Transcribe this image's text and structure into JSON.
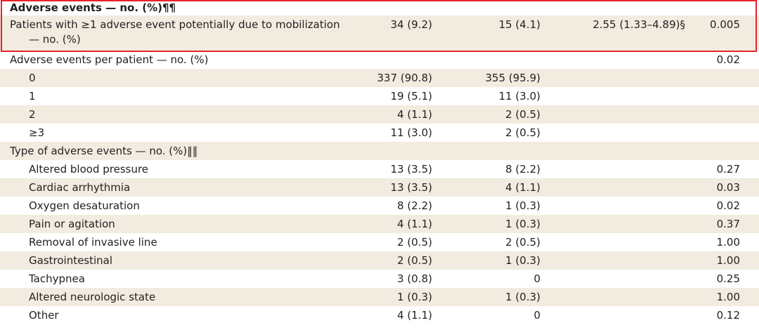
{
  "highlight": {
    "header": "Adverse events — no. (%)¶¶",
    "row_label_line1": "Patients with ≥1 adverse event potentially due to mobilization",
    "row_label_line2": "— no. (%)",
    "col1": "34 (9.2)",
    "col2": "15 (4.1)",
    "col3": "2.55 (1.33–4.89)§",
    "col4": "0.005"
  },
  "per_patient": {
    "label": "Adverse events per patient — no. (%)",
    "p_value": "0.02",
    "rows": [
      {
        "label": "0",
        "col1": "337 (90.8)",
        "col2": "355 (95.9)"
      },
      {
        "label": "1",
        "col1": "19 (5.1)",
        "col2": "11 (3.0)"
      },
      {
        "label": "2",
        "col1": "4 (1.1)",
        "col2": "2 (0.5)"
      },
      {
        "label": "≥3",
        "col1": "11 (3.0)",
        "col2": "2 (0.5)"
      }
    ]
  },
  "types": {
    "label": "Type of adverse events — no. (%)‖‖",
    "rows": [
      {
        "label": "Altered blood pressure",
        "col1": "13 (3.5)",
        "col2": "8 (2.2)",
        "col4": "0.27"
      },
      {
        "label": "Cardiac arrhythmia",
        "col1": "13 (3.5)",
        "col2": "4 (1.1)",
        "col4": "0.03"
      },
      {
        "label": "Oxygen desaturation",
        "col1": "8 (2.2)",
        "col2": "1 (0.3)",
        "col4": "0.02"
      },
      {
        "label": "Pain or agitation",
        "col1": "4 (1.1)",
        "col2": "1 (0.3)",
        "col4": "0.37"
      },
      {
        "label": "Removal of invasive line",
        "col1": "2 (0.5)",
        "col2": "2 (0.5)",
        "col4": "1.00"
      },
      {
        "label": "Gastrointestinal",
        "col1": "2 (0.5)",
        "col2": "1 (0.3)",
        "col4": "1.00"
      },
      {
        "label": "Tachypnea",
        "col1": "3 (0.8)",
        "col2": "0",
        "col4": "0.25"
      },
      {
        "label": "Altered neurologic state",
        "col1": "1 (0.3)",
        "col2": "1 (0.3)",
        "col4": "1.00"
      },
      {
        "label": "Other",
        "col1": "4 (1.1)",
        "col2": "0",
        "col4": "0.12"
      }
    ]
  },
  "colors": {
    "highlight_border": "#e8232a",
    "row_shade": "#f2ece0",
    "text": "#231f20"
  }
}
